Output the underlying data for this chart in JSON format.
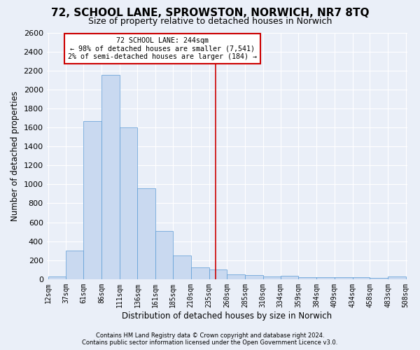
{
  "title": "72, SCHOOL LANE, SPROWSTON, NORWICH, NR7 8TQ",
  "subtitle": "Size of property relative to detached houses in Norwich",
  "xlabel": "Distribution of detached houses by size in Norwich",
  "ylabel": "Number of detached properties",
  "footnote1": "Contains HM Land Registry data © Crown copyright and database right 2024.",
  "footnote2": "Contains public sector information licensed under the Open Government Licence v3.0.",
  "bin_edges": [
    12,
    37,
    61,
    86,
    111,
    136,
    161,
    185,
    210,
    235,
    260,
    285,
    310,
    334,
    359,
    384,
    409,
    434,
    458,
    483,
    508
  ],
  "bar_heights": [
    25,
    300,
    1670,
    2150,
    1600,
    960,
    505,
    250,
    125,
    100,
    50,
    45,
    30,
    35,
    20,
    20,
    20,
    20,
    10,
    25
  ],
  "bar_color": "#c9d9f0",
  "bar_edgecolor": "#5b9bd5",
  "tick_labels": [
    "12sqm",
    "37sqm",
    "61sqm",
    "86sqm",
    "111sqm",
    "136sqm",
    "161sqm",
    "185sqm",
    "210sqm",
    "235sqm",
    "260sqm",
    "285sqm",
    "310sqm",
    "334sqm",
    "359sqm",
    "384sqm",
    "409sqm",
    "434sqm",
    "458sqm",
    "483sqm",
    "508sqm"
  ],
  "annotation_line1": "72 SCHOOL LANE: 244sqm",
  "annotation_line2": "← 98% of detached houses are smaller (7,541)",
  "annotation_line3": "2% of semi-detached houses are larger (184) →",
  "annotation_box_color": "#ffffff",
  "annotation_box_edgecolor": "#cc0000",
  "vline_x": 244,
  "vline_color": "#cc0000",
  "ylim": [
    0,
    2600
  ],
  "background_color": "#eaeff8",
  "grid_color": "#ffffff",
  "title_fontsize": 11,
  "subtitle_fontsize": 9,
  "axis_label_fontsize": 8.5,
  "tick_fontsize": 7,
  "footnote_fontsize": 6
}
